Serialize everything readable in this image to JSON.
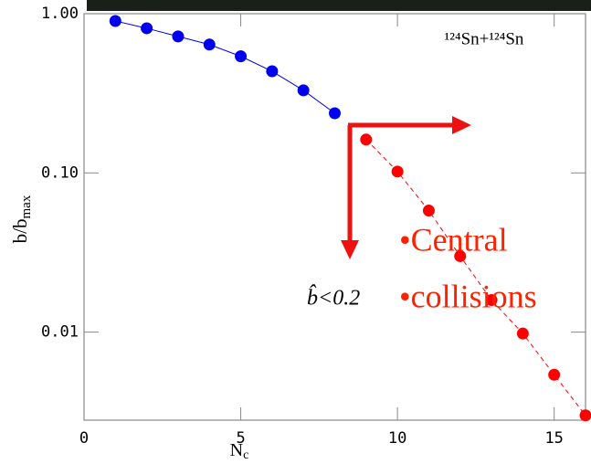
{
  "chart_data": {
    "type": "scatter",
    "log_y": true,
    "xlabel": "N",
    "xlabel_sub": "c",
    "ylabel": "b/b",
    "ylabel_sub": "max",
    "reaction": "¹²⁴Sn+¹²⁴Sn",
    "annotations": [
      "•Central",
      "•collisions",
      "b̂<0.2"
    ],
    "xlim": [
      0,
      16
    ],
    "xticks": [
      0,
      5,
      10,
      15
    ],
    "ylim": [
      0.0028,
      1
    ],
    "yticks": [
      {
        "value": 1,
        "label": "1.00"
      },
      {
        "value": 0.1,
        "label": "0.10"
      },
      {
        "value": 0.01,
        "label": "0.01"
      }
    ],
    "series": [
      {
        "color": "#0000ee",
        "line": "solid",
        "x": [
          1,
          2,
          3,
          4,
          5,
          6,
          7,
          8
        ],
        "values": [
          0.9,
          0.81,
          0.72,
          0.64,
          0.54,
          0.435,
          0.33,
          0.237
        ]
      },
      {
        "color": "#ff0000",
        "line": "dashed",
        "x": [
          9,
          10,
          11,
          12,
          13,
          14,
          15,
          16
        ],
        "values": [
          0.162,
          0.102,
          0.058,
          0.03,
          0.0159,
          0.0098,
          0.0054,
          0.003
        ]
      }
    ]
  }
}
